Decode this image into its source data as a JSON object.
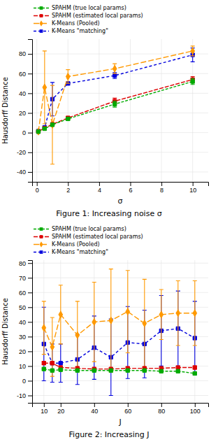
{
  "chart_data": [
    {
      "type": "line",
      "title": "Figure 1: Increasing noise σ",
      "xlabel": "σ",
      "ylabel": "Hausdorff Distance",
      "x": [
        0.1,
        0.5,
        1,
        2,
        5,
        10
      ],
      "xlim": [
        -0.3,
        11
      ],
      "xticks": [
        0,
        2,
        4,
        6,
        8,
        10
      ],
      "ylim": [
        -50,
        95
      ],
      "yticks": [
        -40,
        -20,
        0,
        20,
        40,
        60,
        80
      ],
      "grid": true,
      "legend": "upper left",
      "series": [
        {
          "name": "SPAHM (true local params)",
          "color": "#00aa00",
          "marker": "square",
          "line_style": "dashed",
          "values": [
            1.0,
            4.0,
            8.0,
            14.0,
            29.0,
            52.0
          ],
          "errors": [
            0.2,
            0.5,
            0.8,
            1.5,
            3.0,
            3.0
          ]
        },
        {
          "name": "SPAHM (estimated local params)",
          "color": "#dd0000",
          "marker": "square",
          "line_style": "dashed",
          "values": [
            1.2,
            4.5,
            8.5,
            15.0,
            32.0,
            54.0
          ],
          "errors": [
            0.2,
            0.5,
            0.8,
            1.5,
            3.0,
            3.0
          ]
        },
        {
          "name": "K-Means (Pooled)",
          "color": "#ff9900",
          "marker": "diamond",
          "line_style": "dashed",
          "values": [
            1.0,
            46.0,
            8.0,
            57.0,
            65.0,
            83.0
          ],
          "errors": [
            0.5,
            37.0,
            40.0,
            7.0,
            5.0,
            5.0
          ]
        },
        {
          "name": "K-Means \"matching\"",
          "color": "#0000dd",
          "marker": "square",
          "line_style": "dashed",
          "values": [
            1.5,
            5.0,
            34.0,
            50.0,
            58.0,
            79.0
          ],
          "errors": [
            0.5,
            2.0,
            17.0,
            1.5,
            3.0,
            7.0
          ]
        }
      ]
    },
    {
      "type": "line",
      "title": "Figure 2: Increasing J",
      "xlabel": "J",
      "ylabel": "Hausdorff Distance",
      "x": [
        10,
        15,
        20,
        30,
        40,
        50,
        60,
        70,
        80,
        90,
        100
      ],
      "xlim": [
        3,
        108
      ],
      "xticks": [
        10,
        20,
        40,
        60,
        80,
        100
      ],
      "ylim": [
        -15,
        82
      ],
      "yticks": [
        -10,
        0,
        10,
        20,
        30,
        40,
        50,
        60,
        70,
        80
      ],
      "grid": true,
      "legend": "upper left",
      "series": [
        {
          "name": "SPAHM (true local params)",
          "color": "#00aa00",
          "marker": "square",
          "line_style": "dashed",
          "values": [
            8.0,
            7.0,
            7.5,
            7.0,
            7.0,
            7.0,
            7.0,
            7.0,
            6.5,
            6.5,
            5.0
          ],
          "errors": [
            0.5,
            0.5,
            0.5,
            0.5,
            0.5,
            0.5,
            0.5,
            0.5,
            0.5,
            0.5,
            0.5
          ]
        },
        {
          "name": "SPAHM (estimated local params)",
          "color": "#dd0000",
          "marker": "square",
          "line_style": "dashed",
          "values": [
            12.0,
            12.0,
            9.0,
            8.5,
            8.0,
            8.0,
            8.5,
            8.5,
            8.5,
            9.0,
            9.0
          ],
          "errors": [
            1.0,
            1.0,
            1.0,
            0.8,
            0.8,
            0.8,
            0.8,
            0.8,
            0.8,
            0.8,
            1.0
          ]
        },
        {
          "name": "K-Means (Pooled)",
          "color": "#ff9900",
          "marker": "diamond",
          "line_style": "dashed",
          "values": [
            36.0,
            23.0,
            45.0,
            31.0,
            40.0,
            41.0,
            47.0,
            39.0,
            45.0,
            46.0,
            46.0
          ],
          "errors": [
            18.0,
            20.0,
            20.0,
            23.0,
            27.0,
            35.0,
            28.0,
            30.0,
            17.0,
            22.0,
            22.0
          ]
        },
        {
          "name": "K-Means \"matching\"",
          "color": "#0000dd",
          "marker": "square",
          "line_style": "dashed",
          "values": [
            25.0,
            12.0,
            12.0,
            14.5,
            22.5,
            16.0,
            26.0,
            25.0,
            34.0,
            35.5,
            29.0
          ],
          "errors": [
            25.0,
            13.0,
            13.0,
            17.0,
            21.5,
            26.0,
            24.5,
            23.0,
            24.0,
            25.5,
            25.0
          ]
        }
      ]
    }
  ]
}
